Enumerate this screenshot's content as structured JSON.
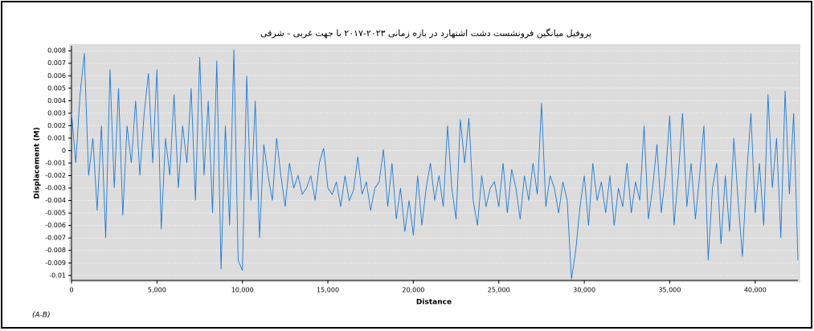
{
  "chart_data": {
    "type": "line",
    "title": "پروفیل میانگین فرونشست دشت اشتهارد در بازه زمانی ۲۰۲۳-۲۰۱۷ با جهت غربی - شرقی",
    "xlabel": "Distance",
    "ylabel": "Displacement (M)",
    "note": "(A-B)",
    "xlim": [
      0,
      42500
    ],
    "ylim": [
      -0.0104,
      0.0084
    ],
    "xticks": [
      0,
      {
        "value": 5000,
        "label": "5,000"
      },
      {
        "value": 10000,
        "label": "10,000"
      },
      {
        "value": 15000,
        "label": "15,000"
      },
      {
        "value": 20000,
        "label": "20,000"
      },
      {
        "value": 25000,
        "label": "25,000"
      },
      {
        "value": 30000,
        "label": "30,000"
      },
      {
        "value": 35000,
        "label": "35,000"
      },
      {
        "value": 40000,
        "label": "40,000"
      }
    ],
    "yticks": [
      0.008,
      0.007,
      0.006,
      0.005,
      0.004,
      0.003,
      0.002,
      0.001,
      0,
      -0.001,
      -0.002,
      -0.003,
      -0.004,
      -0.005,
      -0.006,
      -0.007,
      -0.008,
      -0.009,
      -0.01
    ],
    "grid": true,
    "x": [
      0,
      250,
      500,
      750,
      1000,
      1250,
      1500,
      1750,
      2000,
      2250,
      2500,
      2750,
      3000,
      3250,
      3500,
      3750,
      4000,
      4250,
      4500,
      4750,
      5000,
      5250,
      5500,
      5750,
      6000,
      6250,
      6500,
      6750,
      7000,
      7250,
      7500,
      7750,
      8000,
      8250,
      8500,
      8750,
      9000,
      9250,
      9500,
      9750,
      10000,
      10250,
      10500,
      10750,
      11000,
      11250,
      11500,
      11750,
      12000,
      12250,
      12500,
      12750,
      13000,
      13250,
      13500,
      13750,
      14000,
      14250,
      14500,
      14750,
      15000,
      15250,
      15500,
      15750,
      16000,
      16250,
      16500,
      16750,
      17000,
      17250,
      17500,
      17750,
      18000,
      18250,
      18500,
      18750,
      19000,
      19250,
      19500,
      19750,
      20000,
      20250,
      20500,
      20750,
      21000,
      21250,
      21500,
      21750,
      22000,
      22250,
      22500,
      22750,
      23000,
      23250,
      23500,
      23750,
      24000,
      24250,
      24500,
      24750,
      25000,
      25250,
      25500,
      25750,
      26000,
      26250,
      26500,
      26750,
      27000,
      27250,
      27500,
      27750,
      28000,
      28250,
      28500,
      28750,
      29000,
      29250,
      29500,
      29750,
      30000,
      30250,
      30500,
      30750,
      31000,
      31250,
      31500,
      31750,
      32000,
      32250,
      32500,
      32750,
      33000,
      33250,
      33500,
      33750,
      34000,
      34250,
      34500,
      34750,
      35000,
      35250,
      35500,
      35750,
      36000,
      36250,
      36500,
      36750,
      37000,
      37250,
      37500,
      37750,
      38000,
      38250,
      38500,
      38750,
      39000,
      39250,
      39500,
      39750,
      40000,
      40250,
      40500,
      40750,
      41000,
      41250,
      41500,
      41750,
      42000,
      42250,
      42500
    ],
    "series": [
      {
        "name": "Displacement",
        "color": "#1f7bd6",
        "values": [
          0.003,
          -0.001,
          0.0045,
          0.0078,
          -0.002,
          0.001,
          -0.0048,
          0.002,
          -0.007,
          0.0065,
          -0.003,
          0.005,
          -0.0052,
          0.002,
          -0.001,
          0.004,
          -0.002,
          0.003,
          0.0062,
          -0.001,
          0.0065,
          -0.0063,
          0.001,
          -0.002,
          0.0045,
          -0.003,
          0.002,
          -0.001,
          0.005,
          -0.004,
          0.0075,
          -0.002,
          0.004,
          -0.005,
          0.0072,
          -0.0095,
          0.002,
          -0.006,
          0.0081,
          -0.0088,
          -0.0096,
          0.006,
          -0.004,
          0.004,
          -0.007,
          0.0005,
          -0.002,
          -0.004,
          0.001,
          -0.002,
          -0.0045,
          -0.001,
          -0.003,
          -0.002,
          -0.0035,
          -0.003,
          -0.002,
          -0.004,
          -0.001,
          0.0002,
          -0.003,
          -0.0035,
          -0.0025,
          -0.0045,
          -0.002,
          -0.004,
          -0.0032,
          -0.0005,
          -0.0035,
          -0.0025,
          -0.0048,
          -0.003,
          -0.0025,
          0.0001,
          -0.0045,
          -0.001,
          -0.0055,
          -0.003,
          -0.0065,
          -0.004,
          -0.0068,
          -0.002,
          -0.006,
          -0.003,
          -0.001,
          -0.004,
          -0.002,
          -0.0045,
          0.002,
          -0.003,
          -0.0055,
          0.0025,
          -0.001,
          0.0026,
          -0.004,
          -0.006,
          -0.002,
          -0.0045,
          -0.003,
          -0.0025,
          -0.0045,
          -0.001,
          -0.005,
          -0.0015,
          -0.003,
          -0.0055,
          -0.002,
          -0.004,
          -0.001,
          -0.0035,
          0.0038,
          -0.0045,
          -0.002,
          -0.003,
          -0.005,
          -0.0025,
          -0.004,
          -0.0103,
          -0.008,
          -0.0045,
          -0.002,
          -0.006,
          -0.001,
          -0.004,
          -0.0025,
          -0.005,
          -0.002,
          -0.006,
          -0.003,
          -0.0045,
          -0.001,
          -0.005,
          -0.0025,
          -0.004,
          0.002,
          -0.0055,
          -0.003,
          0.0005,
          -0.005,
          -0.002,
          0.0028,
          -0.006,
          -0.002,
          0.003,
          -0.0045,
          -0.001,
          -0.0055,
          -0.002,
          0.002,
          -0.0088,
          -0.003,
          -0.001,
          -0.0075,
          -0.002,
          -0.0065,
          0.001,
          -0.004,
          -0.0085,
          -0.002,
          0.003,
          -0.005,
          -0.001,
          -0.006,
          0.0045,
          -0.003,
          0.001,
          -0.007,
          0.0048,
          -0.0035,
          0.003,
          -0.0088
        ]
      }
    ]
  }
}
